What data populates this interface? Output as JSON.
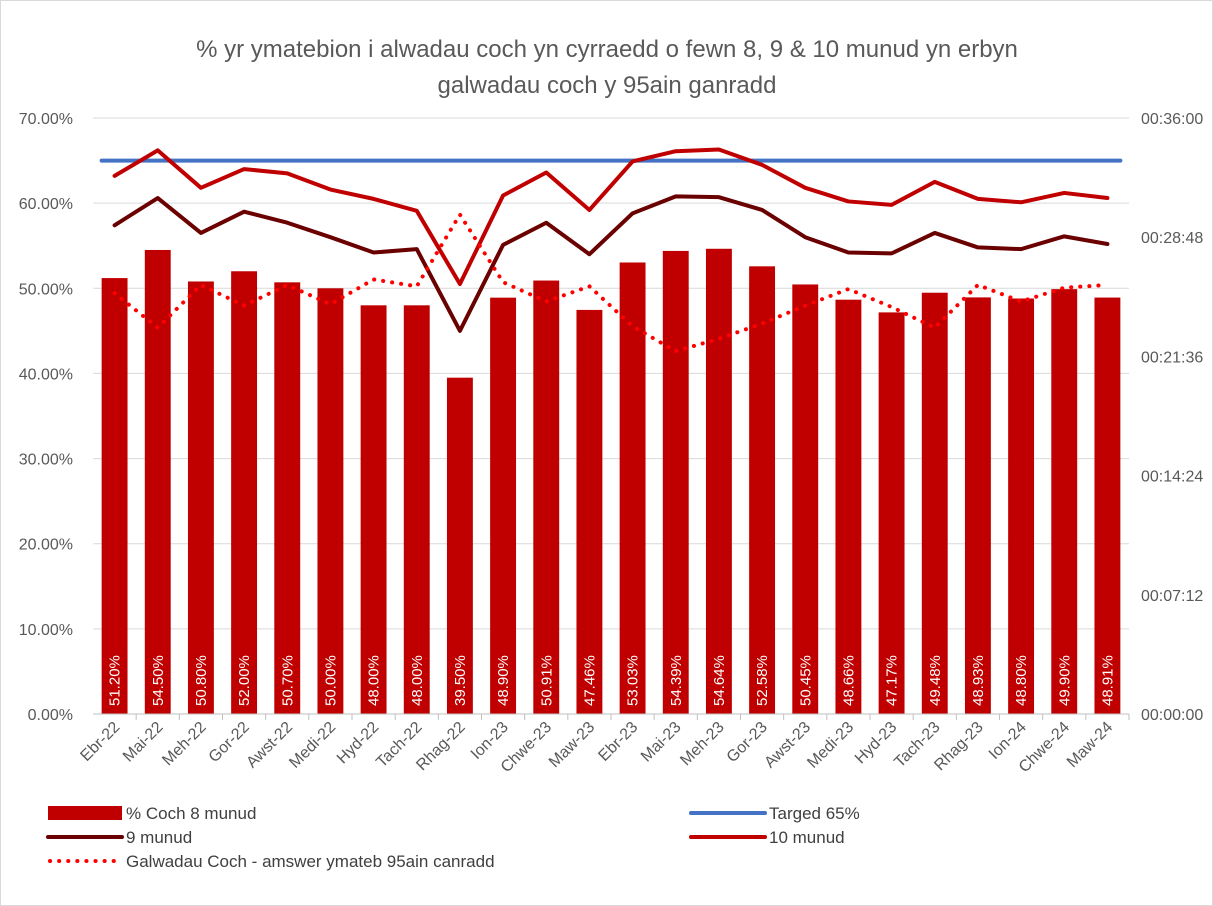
{
  "chart_data": {
    "type": "bar",
    "title_line1": "% yr ymatebion i alwadau coch yn cyrraedd o fewn 8, 9 & 10 munud yn erbyn",
    "title_line2": "galwadau coch y 95ain ganradd",
    "categories": [
      "Ebr-22",
      "Mai-22",
      "Meh-22",
      "Gor-22",
      "Awst-22",
      "Medi-22",
      "Hyd-22",
      "Tach-22",
      "Rhag-22",
      "Ion-23",
      "Chwe-23",
      "Maw-23",
      "Ebr-23",
      "Mai-23",
      "Meh-23",
      "Gor-23",
      "Awst-23",
      "Medi-23",
      "Hyd-23",
      "Tach-23",
      "Rhag-23",
      "Ion-24",
      "Chwe-24",
      "Maw-24"
    ],
    "y_left": {
      "min": 0,
      "max": 70,
      "ticks": [
        "0.00%",
        "10.00%",
        "20.00%",
        "30.00%",
        "40.00%",
        "50.00%",
        "60.00%",
        "70.00%"
      ]
    },
    "y_right": {
      "min_seconds": 0,
      "max_seconds": 2160,
      "ticks": [
        "00:00:00",
        "00:07:12",
        "00:14:24",
        "00:21:36",
        "00:28:48",
        "00:36:00"
      ]
    },
    "grid": true,
    "legend_position": "bottom",
    "series": [
      {
        "name": "% Coch 8 munud",
        "kind": "bar",
        "axis": "left",
        "color": "#c00000",
        "values": [
          51.2,
          54.5,
          50.8,
          52.0,
          50.7,
          50.0,
          48.0,
          48.0,
          39.5,
          48.9,
          50.91,
          47.46,
          53.03,
          54.39,
          54.64,
          52.58,
          50.45,
          48.66,
          47.17,
          49.48,
          48.93,
          48.8,
          49.9,
          48.91
        ],
        "labels": [
          "51.20%",
          "54.50%",
          "50.80%",
          "52.00%",
          "50.70%",
          "50.00%",
          "48.00%",
          "48.00%",
          "39.50%",
          "48.90%",
          "50.91%",
          "47.46%",
          "53.03%",
          "54.39%",
          "54.64%",
          "52.58%",
          "50.45%",
          "48.66%",
          "47.17%",
          "49.48%",
          "48.93%",
          "48.80%",
          "49.90%",
          "48.91%"
        ]
      },
      {
        "name": "Targed 65%",
        "kind": "line",
        "axis": "left",
        "color": "#4472c4",
        "values": [
          65,
          65,
          65,
          65,
          65,
          65,
          65,
          65,
          65,
          65,
          65,
          65,
          65,
          65,
          65,
          65,
          65,
          65,
          65,
          65,
          65,
          65,
          65,
          65
        ]
      },
      {
        "name": "9 munud",
        "kind": "line",
        "axis": "left",
        "color": "#6b0000",
        "values": [
          57.4,
          60.6,
          56.5,
          59.0,
          57.7,
          56.0,
          54.2,
          54.6,
          45.0,
          55.1,
          57.7,
          54.0,
          58.8,
          60.8,
          60.7,
          59.2,
          56.0,
          54.2,
          54.1,
          56.5,
          54.8,
          54.6,
          56.1,
          55.2
        ]
      },
      {
        "name": "10 munud",
        "kind": "line",
        "axis": "left",
        "color": "#c00000",
        "values": [
          63.2,
          66.2,
          61.8,
          64.0,
          63.5,
          61.6,
          60.5,
          59.1,
          50.5,
          60.9,
          63.6,
          59.2,
          64.9,
          66.1,
          66.3,
          64.5,
          61.8,
          60.2,
          59.8,
          62.5,
          60.5,
          60.1,
          61.2,
          60.6
        ]
      },
      {
        "name": "Galwadau Coch - amswer ymateb 95ain canradd",
        "kind": "dotted-line",
        "axis": "right",
        "color": "#ff0000",
        "values": [
          "00:25:25",
          "00:23:20",
          "00:25:55",
          "00:24:40",
          "00:25:55",
          "00:24:45",
          "00:26:15",
          "00:25:50",
          "00:30:10",
          "00:26:05",
          "00:24:55",
          "00:25:50",
          "00:23:25",
          "00:21:55",
          "00:22:40",
          "00:23:35",
          "00:24:40",
          "00:25:40",
          "00:24:35",
          "00:23:20",
          "00:25:55",
          "00:24:55",
          "00:25:45",
          "00:25:55"
        ]
      }
    ]
  }
}
